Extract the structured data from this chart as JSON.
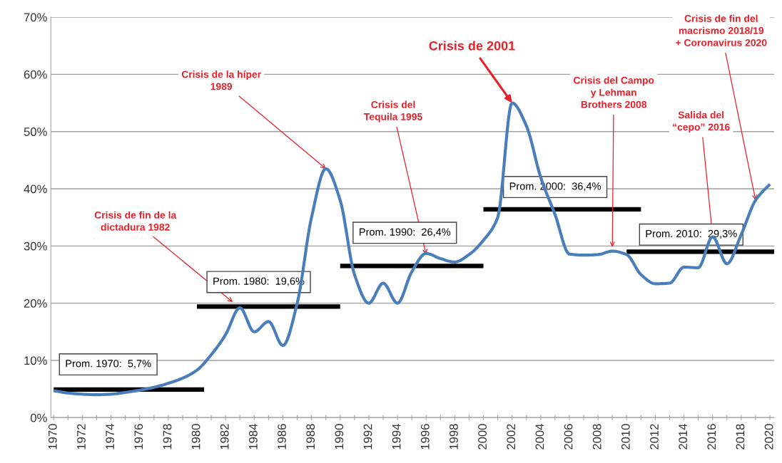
{
  "chart_data": {
    "type": "line",
    "ylim": [
      0,
      70
    ],
    "yticks": [
      {
        "value": 0,
        "label": "0%"
      },
      {
        "value": 10,
        "label": "10%"
      },
      {
        "value": 20,
        "label": "20%"
      },
      {
        "value": 30,
        "label": "30%"
      },
      {
        "value": 40,
        "label": "40%"
      },
      {
        "value": 50,
        "label": "50%"
      },
      {
        "value": 60,
        "label": "60%"
      },
      {
        "value": 70,
        "label": "70%"
      }
    ],
    "xlim": [
      1969.8,
      2020.3
    ],
    "xticks": [
      1970,
      {
        "value": 1971,
        "label": null
      },
      1972,
      {
        "value": 1973,
        "label": null
      },
      1974,
      {
        "value": 1975,
        "label": null
      },
      1976,
      {
        "value": 1977,
        "label": null
      },
      1978,
      {
        "value": 1979,
        "label": null
      },
      1980,
      {
        "value": 1981,
        "label": null
      },
      1982,
      {
        "value": 1983,
        "label": null
      },
      1984,
      {
        "value": 1985,
        "label": null
      },
      1986,
      {
        "value": 1987,
        "label": null
      },
      1988,
      {
        "value": 1989,
        "label": null
      },
      1990,
      {
        "value": 1991,
        "label": null
      },
      1992,
      {
        "value": 1993,
        "label": null
      },
      1994,
      {
        "value": 1995,
        "label": null
      },
      1996,
      {
        "value": 1997,
        "label": null
      },
      1998,
      {
        "value": 1999,
        "label": null
      },
      2000,
      {
        "value": 2001,
        "label": null
      },
      2002,
      {
        "value": 2003,
        "label": null
      },
      2004,
      {
        "value": 2005,
        "label": null
      },
      2006,
      {
        "value": 2007,
        "label": null
      },
      2008,
      {
        "value": 2009,
        "label": null
      },
      2010,
      {
        "value": 2011,
        "label": null
      },
      2012,
      {
        "value": 2013,
        "label": null
      },
      2014,
      {
        "value": 2015,
        "label": null
      },
      2016,
      {
        "value": 2017,
        "label": null
      },
      2018,
      {
        "value": 2019,
        "label": null
      },
      2020
    ],
    "grid": "y",
    "marker": "none",
    "line_style": "solid",
    "series": [
      {
        "color": "#4a7ebb",
        "x": [
          1970,
          1971,
          1972,
          1973,
          1974,
          1975,
          1976,
          1977,
          1978,
          1979,
          1980,
          1981,
          1982,
          1983,
          1984,
          1985,
          1986,
          1987,
          1988,
          1989,
          1990,
          1991,
          1992,
          1993,
          1994,
          1995,
          1996,
          1997,
          1998,
          1999,
          2000,
          2001,
          2002,
          2003,
          2004,
          2005,
          2006,
          2007,
          2008,
          2009,
          2010,
          2011,
          2012,
          2013,
          2014,
          2015,
          2016,
          2017,
          2018,
          2019,
          2020
        ],
        "values": [
          4.7,
          4.3,
          4.1,
          4.0,
          4.1,
          4.4,
          4.8,
          5.3,
          6.0,
          6.9,
          8.3,
          11,
          14.5,
          19.2,
          15,
          16.8,
          12.6,
          20,
          35,
          43.5,
          38,
          25,
          20,
          23.5,
          20,
          25.5,
          28.7,
          27.8,
          27.2,
          28.5,
          31,
          35,
          55,
          51,
          42,
          35.5,
          28.6,
          28.4,
          28.5,
          29.1,
          28.5,
          25,
          23.4,
          23.5,
          26.3,
          26.2,
          31.6,
          26.9,
          32,
          38,
          40.8
        ]
      },
      {
        "name": "Prom. 1970:  5,7%",
        "color": "#000000",
        "x": [
          1970,
          1980.5
        ],
        "values": [
          4.9,
          4.9
        ]
      },
      {
        "name": "Prom. 1980:  19,6%",
        "color": "#000000",
        "x": [
          1980,
          1990
        ],
        "values": [
          19.4,
          19.4
        ]
      },
      {
        "name": "Prom. 1990:  26,4%",
        "color": "#000000",
        "x": [
          1990,
          2000
        ],
        "values": [
          26.5,
          26.5
        ]
      },
      {
        "name": "Prom. 2000:  36,4%",
        "color": "#000000",
        "x": [
          2000,
          2011
        ],
        "values": [
          36.4,
          36.4
        ]
      },
      {
        "name": "Prom. 2010:  29,3%",
        "color": "#000000",
        "x": [
          2010,
          2020.3
        ],
        "values": [
          29.0,
          29.0
        ]
      }
    ],
    "annotations": [
      {
        "text": "Crisis de fin de la\ndictadura 1982",
        "x": 1982.5,
        "y": 20.2
      },
      {
        "text": "Crisis de la híper\n1989",
        "x": 1989,
        "y": 43.5
      },
      {
        "text": "Crisis del\nTequila 1995",
        "x": 1996,
        "y": 28.5
      },
      {
        "text": "Crisis de 2001",
        "x": 2002,
        "y": 55
      },
      {
        "text": "Crisis del Campo\ny Lehman\nBrothers 2008",
        "x": 2009,
        "y": 29.8
      },
      {
        "text": "Salida del\n“cepo” 2016",
        "x": 2016,
        "y": 31.8
      },
      {
        "text": "Crisis de fin del\nmacrismo 2018/19\n+ Coronavirus 2020",
        "x": 2019,
        "y": 38
      }
    ]
  }
}
